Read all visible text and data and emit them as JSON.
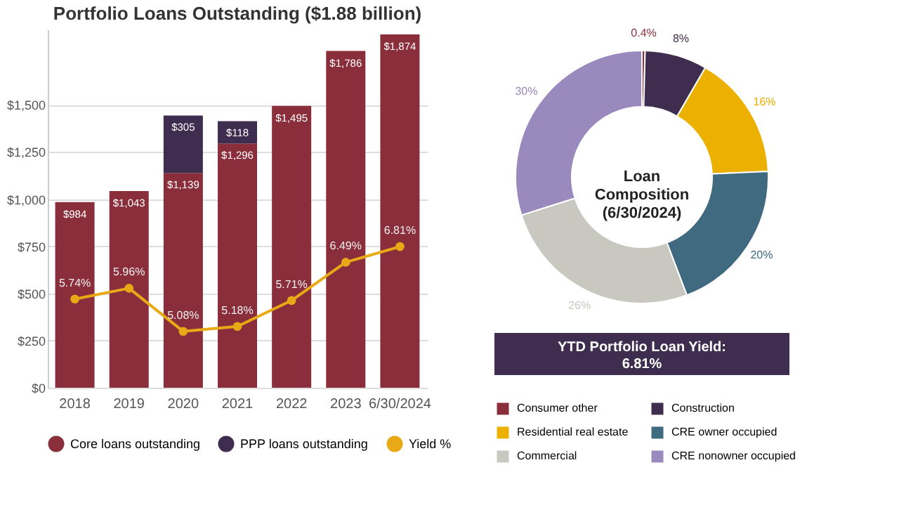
{
  "chart_data": [
    {
      "type": "bar",
      "title": "Portfolio Loans Outstanding ($1.88 billion)",
      "stacked": true,
      "categories": [
        "2018",
        "2019",
        "2020",
        "2021",
        "2022",
        "2023",
        "6/30/2024"
      ],
      "series": [
        {
          "name": "Core loans outstanding",
          "color": "#8b2e3c",
          "values": [
            984,
            1043,
            1139,
            1296,
            1495,
            1786,
            1874
          ],
          "value_labels": [
            "$984",
            "$1,043",
            "$1,139",
            "$1,296",
            "$1,495",
            "$1,786",
            "$1,874"
          ]
        },
        {
          "name": "PPP loans outstanding",
          "color": "#3f2d4f",
          "values": [
            null,
            null,
            305,
            118,
            null,
            null,
            null
          ],
          "value_labels": [
            null,
            null,
            "$305",
            "$118",
            null,
            null,
            null
          ]
        },
        {
          "name": "Yield %",
          "type": "line",
          "axis": "y2",
          "color": "#e8a917",
          "marker": "circle",
          "values": [
            5.74,
            5.96,
            5.08,
            5.18,
            5.71,
            6.49,
            6.81
          ],
          "value_labels": [
            "5.74%",
            "5.96%",
            "5.08%",
            "5.18%",
            "5.71%",
            "6.49%",
            "6.81%"
          ]
        }
      ],
      "ylim": [
        0,
        1900
      ],
      "yticks": [
        {
          "value": 0,
          "label": "$0"
        },
        {
          "value": 250,
          "label": "$250"
        },
        {
          "value": 500,
          "label": "$500"
        },
        {
          "value": 750,
          "label": "$750"
        },
        {
          "value": 1000,
          "label": "$1,000"
        },
        {
          "value": 1250,
          "label": "$1,250"
        },
        {
          "value": 1500,
          "label": "$1,500"
        }
      ],
      "y2lim": [
        3.93,
        11.24
      ],
      "grid": "y",
      "legend": "bottom"
    },
    {
      "type": "donut",
      "title": "Loan Composition (6/30/2024)",
      "categories": [
        "Consumer other",
        "Construction",
        "Residential real estate",
        "CRE owner occupied",
        "Commercial",
        "CRE nonowner occupied"
      ],
      "values": [
        0.4,
        8,
        16,
        20,
        26,
        30
      ],
      "value_labels": [
        "0.4%",
        "8%",
        "16%",
        "20%",
        "26%",
        "30%"
      ],
      "colors": [
        "#8b2e3c",
        "#3f2d4f",
        "#ebb000",
        "#3f6a80",
        "#c9c8c0",
        "#9a89bc"
      ],
      "legend": "bottom",
      "annotations": [
        "YTD Portfolio Loan Yield:",
        "6.81%"
      ]
    }
  ]
}
